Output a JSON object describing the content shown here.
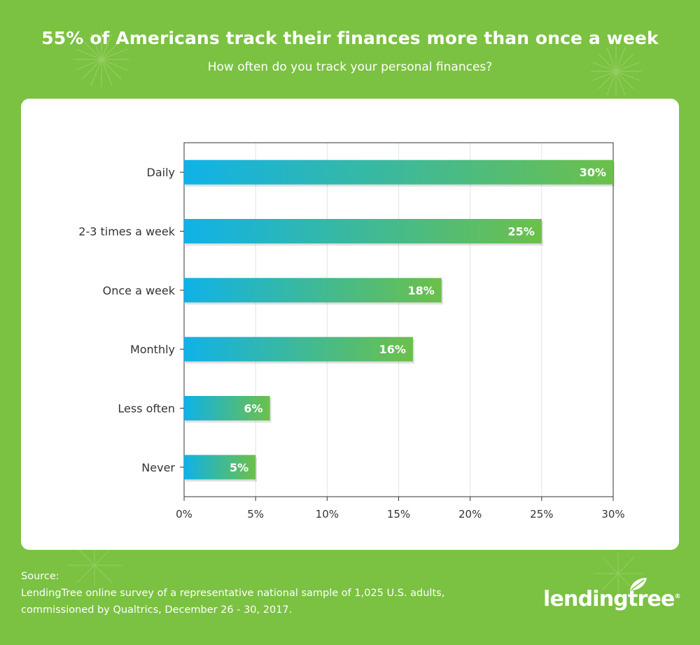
{
  "header": {
    "title": "55% of Americans track their finances more than once a week",
    "subtitle": "How often do you track your personal finances?"
  },
  "chart_data": {
    "type": "bar",
    "orientation": "horizontal",
    "categories": [
      "Daily",
      "2-3 times a week",
      "Once a week",
      "Monthly",
      "Less often",
      "Never"
    ],
    "values": [
      30,
      25,
      18,
      16,
      6,
      5
    ],
    "value_labels": [
      "30%",
      "25%",
      "18%",
      "16%",
      "6%",
      "5%"
    ],
    "xlim": [
      0,
      30
    ],
    "xticks": [
      "0%",
      "5%",
      "10%",
      "15%",
      "20%",
      "25%",
      "30%"
    ],
    "grid": true,
    "bar_gradient": [
      "#0fb2e8",
      "#6cc04a"
    ]
  },
  "footer": {
    "source_label": "Source:",
    "source_line1": "LendingTree online survey of a representative national sample of 1,025 U.S. adults,",
    "source_line2": "commissioned by Qualtrics, December 26 - 30, 2017."
  },
  "logo": {
    "text": "lendingtree",
    "mark": "®"
  },
  "colors": {
    "background": "#7bc142",
    "card": "#ffffff",
    "text": "#333333"
  }
}
